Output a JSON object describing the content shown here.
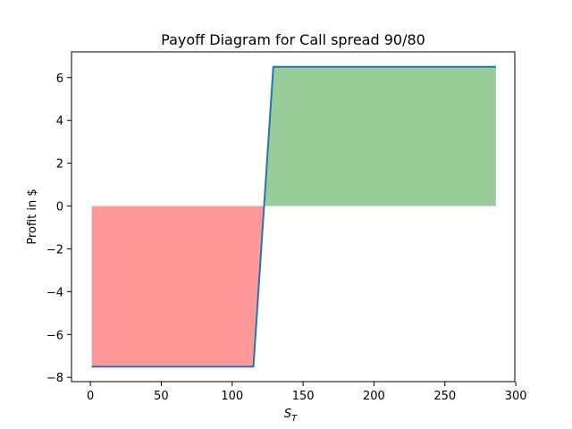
{
  "chart_data": {
    "type": "line",
    "title": "Payoff Diagram for Call spread 90/80",
    "xlabel_main": "S",
    "xlabel_sub": "T",
    "ylabel": "Profit in $",
    "xlim": [
      -13.3,
      299.3
    ],
    "ylim": [
      -8.2,
      7.2
    ],
    "xticks": [
      0,
      50,
      100,
      150,
      200,
      250,
      300
    ],
    "yticks": [
      -8,
      -6,
      -4,
      -2,
      0,
      2,
      4,
      6
    ],
    "series": [
      {
        "x": [
          1,
          115,
          129,
          286
        ],
        "y": [
          -7.5,
          -7.5,
          6.5,
          6.5
        ],
        "color": "#1f77b4"
      }
    ],
    "fill_loss_color": "#ff9999",
    "fill_profit_color": "#99cc99",
    "grid": false
  }
}
